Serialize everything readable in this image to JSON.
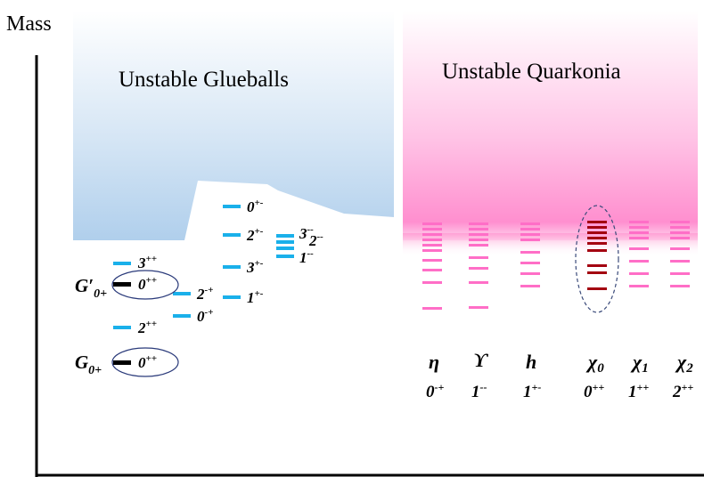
{
  "axis": {
    "label": "Mass"
  },
  "glueball_region": {
    "title": "Unstable Glueballs",
    "band_color": "#b7d3ee",
    "level_color": "#1ab0ea",
    "states": [
      {
        "label": "3",
        "sup": "++"
      },
      {
        "label": "0",
        "sup": "++"
      },
      {
        "label": "2",
        "sup": "-+"
      },
      {
        "label": "0",
        "sup": "-+"
      },
      {
        "label": "2",
        "sup": "++"
      },
      {
        "label": "0",
        "sup": "++"
      },
      {
        "label": "0",
        "sup": "+-"
      },
      {
        "label": "2",
        "sup": "+-"
      },
      {
        "label": "3",
        "sup": "+-"
      },
      {
        "label": "1",
        "sup": "+-"
      },
      {
        "label": "3",
        "sup": "--"
      },
      {
        "label": "2",
        "sup": "--"
      },
      {
        "label": "1",
        "sup": "--"
      }
    ],
    "g_labels": [
      {
        "name": "G′",
        "sub": "0+"
      },
      {
        "name": "G",
        "sub": "0+"
      }
    ]
  },
  "quarkonia_region": {
    "title": "Unstable Quarkonia",
    "band_color": "#ff8fcf",
    "level_color": "#ff6ec7",
    "highlight_color": "#a30010",
    "columns": [
      {
        "symbol": "η",
        "jpc": "0",
        "jpc_sup": "-+",
        "levels": 10
      },
      {
        "symbol": "ϒ",
        "jpc": "1",
        "jpc_sup": "--",
        "levels": 9
      },
      {
        "symbol": "h",
        "jpc": "1",
        "jpc_sup": "+-",
        "levels": 8
      },
      {
        "symbol": "χ",
        "symbol_sub": "0",
        "jpc": "0",
        "jpc_sup": "++",
        "levels": 9
      },
      {
        "symbol": "χ",
        "symbol_sub": "1",
        "jpc": "1",
        "jpc_sup": "++",
        "levels": 8
      },
      {
        "symbol": "χ",
        "symbol_sub": "2",
        "jpc": "2",
        "jpc_sup": "++",
        "levels": 8
      }
    ]
  }
}
